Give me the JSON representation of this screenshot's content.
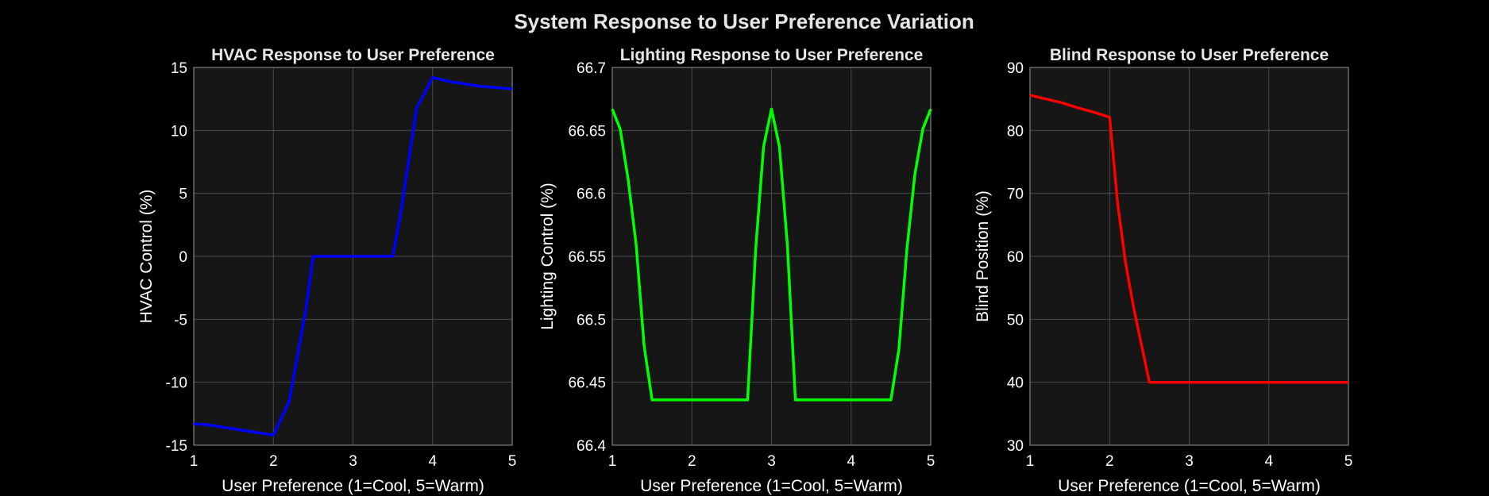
{
  "figure": {
    "title": "System Response to User Preference Variation"
  },
  "chart_data": [
    {
      "type": "line",
      "title": "HVAC Response to User Preference",
      "xlabel": "User Preference (1=Cool, 5=Warm)",
      "ylabel": "HVAC Control (%)",
      "xlim": [
        1,
        5
      ],
      "ylim": [
        -15,
        15
      ],
      "xticks": [
        1,
        2,
        3,
        4,
        5
      ],
      "yticks": [
        15,
        10,
        5,
        0,
        -5,
        -10,
        -15
      ],
      "grid": true,
      "series": [
        {
          "color": "#0000ff",
          "x": [
            1,
            1.2,
            1.4,
            1.6,
            1.8,
            2.0,
            2.2,
            2.4,
            2.5,
            2.6,
            2.8,
            3.0,
            3.2,
            3.4,
            3.5,
            3.6,
            3.8,
            4.0,
            4.2,
            4.4,
            4.6,
            4.8,
            5.0
          ],
          "y": [
            -13.3,
            -13.4,
            -13.6,
            -13.8,
            -14.0,
            -14.2,
            -11.5,
            -4.5,
            0,
            0,
            0,
            0,
            0,
            0,
            0,
            3.5,
            11.8,
            14.2,
            13.9,
            13.7,
            13.5,
            13.4,
            13.3
          ]
        }
      ]
    },
    {
      "type": "line",
      "title": "Lighting Response to User Preference",
      "xlabel": "User Preference (1=Cool, 5=Warm)",
      "ylabel": "Lighting Control (%)",
      "xlim": [
        1,
        5
      ],
      "ylim": [
        66.4,
        66.7
      ],
      "xticks": [
        1,
        2,
        3,
        4,
        5
      ],
      "yticks": [
        "66.7",
        "66.65",
        "66.6",
        "66.55",
        "66.5",
        "66.45",
        "66.4"
      ],
      "grid": true,
      "series": [
        {
          "color": "#00ff00",
          "x": [
            1.0,
            1.1,
            1.2,
            1.3,
            1.4,
            1.5,
            2.7,
            2.8,
            2.9,
            3.0,
            3.1,
            3.2,
            3.3,
            4.5,
            4.6,
            4.7,
            4.8,
            4.9,
            5.0
          ],
          "y": [
            66.667,
            66.651,
            66.611,
            66.559,
            66.479,
            66.436,
            66.436,
            66.555,
            66.637,
            66.667,
            66.637,
            66.559,
            66.436,
            66.436,
            66.476,
            66.555,
            66.615,
            66.651,
            66.667
          ]
        }
      ]
    },
    {
      "type": "line",
      "title": "Blind Response to User Preference",
      "xlabel": "User Preference (1=Cool, 5=Warm)",
      "ylabel": "Blind Position (%)",
      "xlim": [
        1,
        5
      ],
      "ylim": [
        30,
        90
      ],
      "xticks": [
        1,
        2,
        3,
        4,
        5
      ],
      "yticks": [
        90,
        80,
        70,
        60,
        50,
        40,
        30
      ],
      "grid": true,
      "series": [
        {
          "color": "#ff0000",
          "x": [
            1.0,
            1.2,
            1.4,
            1.6,
            1.8,
            2.0,
            2.1,
            2.2,
            2.3,
            2.4,
            2.5,
            3.0,
            3.5,
            4.0,
            4.5,
            5.0
          ],
          "y": [
            85.6,
            85.0,
            84.4,
            83.6,
            82.9,
            82.1,
            68.5,
            59.0,
            52.0,
            46.0,
            40.0,
            40.0,
            40.0,
            40.0,
            40.0,
            40.0
          ]
        }
      ]
    }
  ]
}
